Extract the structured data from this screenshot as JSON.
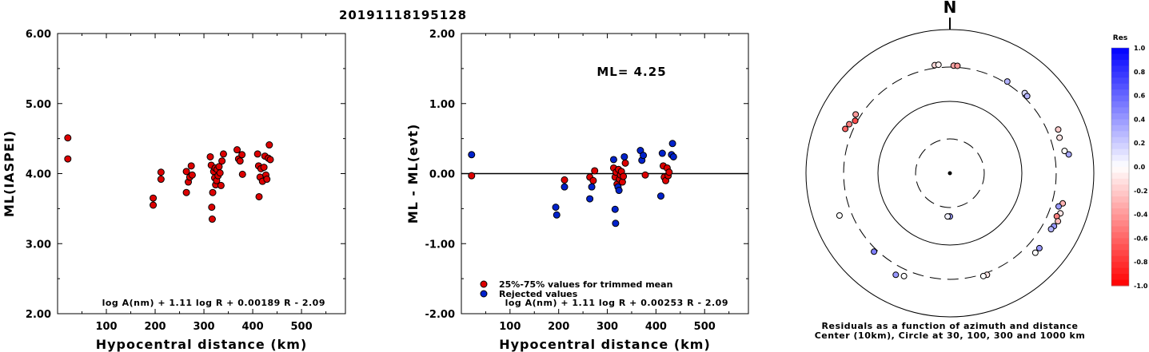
{
  "title": "20191118195128",
  "chart_data": [
    {
      "type": "scatter",
      "panel": "left",
      "ylabel": "ML(IASPEI)",
      "xlabel": "Hypocentral distance (km)",
      "xlim": [
        0,
        590
      ],
      "ylim": [
        2.0,
        6.0
      ],
      "xticks": [
        100,
        200,
        300,
        400,
        500
      ],
      "yticks": [
        "2.00",
        "3.00",
        "4.00",
        "5.00",
        "6.00"
      ],
      "formula": "log A(nm) + 1.11 log R + 0.00189 R - 2.09",
      "point_color": "#dd0000",
      "points": [
        {
          "x": 21,
          "y": 4.51
        },
        {
          "x": 21,
          "y": 4.21
        },
        {
          "x": 196,
          "y": 3.65
        },
        {
          "x": 196,
          "y": 3.55
        },
        {
          "x": 212,
          "y": 4.02
        },
        {
          "x": 212,
          "y": 3.92
        },
        {
          "x": 264,
          "y": 4.03
        },
        {
          "x": 264,
          "y": 3.73
        },
        {
          "x": 268,
          "y": 3.88
        },
        {
          "x": 271,
          "y": 3.95
        },
        {
          "x": 274,
          "y": 4.11
        },
        {
          "x": 276,
          "y": 3.98
        },
        {
          "x": 313,
          "y": 4.24
        },
        {
          "x": 315,
          "y": 4.12
        },
        {
          "x": 316,
          "y": 3.52
        },
        {
          "x": 317,
          "y": 3.35
        },
        {
          "x": 318,
          "y": 3.73
        },
        {
          "x": 320,
          "y": 4.03
        },
        {
          "x": 322,
          "y": 3.94
        },
        {
          "x": 323,
          "y": 4.08
        },
        {
          "x": 324,
          "y": 3.84
        },
        {
          "x": 326,
          "y": 3.9
        },
        {
          "x": 327,
          "y": 4.06
        },
        {
          "x": 329,
          "y": 3.97
        },
        {
          "x": 331,
          "y": 4.1
        },
        {
          "x": 333,
          "y": 4.01
        },
        {
          "x": 335,
          "y": 3.83
        },
        {
          "x": 337,
          "y": 4.18
        },
        {
          "x": 340,
          "y": 4.28
        },
        {
          "x": 368,
          "y": 4.34
        },
        {
          "x": 371,
          "y": 4.21
        },
        {
          "x": 374,
          "y": 4.18
        },
        {
          "x": 378,
          "y": 4.27
        },
        {
          "x": 379,
          "y": 3.99
        },
        {
          "x": 410,
          "y": 4.28
        },
        {
          "x": 412,
          "y": 4.11
        },
        {
          "x": 413,
          "y": 3.67
        },
        {
          "x": 415,
          "y": 3.95
        },
        {
          "x": 417,
          "y": 4.07
        },
        {
          "x": 420,
          "y": 3.89
        },
        {
          "x": 423,
          "y": 4.09
        },
        {
          "x": 425,
          "y": 4.25
        },
        {
          "x": 427,
          "y": 3.98
        },
        {
          "x": 429,
          "y": 3.92
        },
        {
          "x": 432,
          "y": 4.22
        },
        {
          "x": 434,
          "y": 4.41
        },
        {
          "x": 436,
          "y": 4.2
        }
      ]
    },
    {
      "type": "scatter",
      "panel": "middle",
      "ylabel": "ML - ML(evt)",
      "xlabel": "Hypocentral distance (km)",
      "xlim": [
        0,
        590
      ],
      "ylim": [
        -2.0,
        2.0
      ],
      "xticks": [
        100,
        200,
        300,
        400,
        500
      ],
      "yticks": [
        "-2.00",
        "-1.00",
        "0.00",
        "1.00",
        "2.00"
      ],
      "zero_line": 0.0,
      "ml_label": "ML= 4.25",
      "formula": "log A(nm) + 1.11 log R + 0.00253 R - 2.09",
      "legend": [
        {
          "label": "25%-75% values for trimmed mean",
          "color": "#dd0000"
        },
        {
          "label": "Rejected values",
          "color": "#0022cc"
        }
      ],
      "series": [
        {
          "name": "25%-75% values for trimmed mean",
          "color": "#dd0000",
          "points": [
            {
              "x": 21,
              "y": -0.03
            },
            {
              "x": 212,
              "y": -0.09
            },
            {
              "x": 264,
              "y": -0.05
            },
            {
              "x": 271,
              "y": -0.1
            },
            {
              "x": 274,
              "y": 0.04
            },
            {
              "x": 313,
              "y": 0.08
            },
            {
              "x": 316,
              "y": -0.05
            },
            {
              "x": 318,
              "y": 0.02
            },
            {
              "x": 320,
              "y": -0.15
            },
            {
              "x": 323,
              "y": 0.06
            },
            {
              "x": 325,
              "y": -0.08
            },
            {
              "x": 327,
              "y": -0.02
            },
            {
              "x": 329,
              "y": 0.03
            },
            {
              "x": 331,
              "y": -0.12
            },
            {
              "x": 333,
              "y": -0.04
            },
            {
              "x": 337,
              "y": 0.15
            },
            {
              "x": 378,
              "y": -0.02
            },
            {
              "x": 415,
              "y": 0.11
            },
            {
              "x": 417,
              "y": -0.05
            },
            {
              "x": 420,
              "y": -0.1
            },
            {
              "x": 423,
              "y": 0.08
            },
            {
              "x": 425,
              "y": -0.03
            },
            {
              "x": 427,
              "y": 0.02
            }
          ]
        },
        {
          "name": "Rejected values",
          "color": "#0022cc",
          "points": [
            {
              "x": 21,
              "y": 0.27
            },
            {
              "x": 194,
              "y": -0.48
            },
            {
              "x": 196,
              "y": -0.59
            },
            {
              "x": 212,
              "y": -0.19
            },
            {
              "x": 264,
              "y": -0.36
            },
            {
              "x": 268,
              "y": -0.19
            },
            {
              "x": 313,
              "y": 0.2
            },
            {
              "x": 316,
              "y": -0.51
            },
            {
              "x": 317,
              "y": -0.71
            },
            {
              "x": 322,
              "y": -0.19
            },
            {
              "x": 324,
              "y": -0.24
            },
            {
              "x": 335,
              "y": 0.24
            },
            {
              "x": 368,
              "y": 0.33
            },
            {
              "x": 371,
              "y": 0.19
            },
            {
              "x": 374,
              "y": 0.26
            },
            {
              "x": 410,
              "y": -0.32
            },
            {
              "x": 413,
              "y": 0.29
            },
            {
              "x": 432,
              "y": 0.27
            },
            {
              "x": 434,
              "y": 0.43
            },
            {
              "x": 436,
              "y": 0.24
            }
          ]
        }
      ]
    },
    {
      "type": "polar",
      "panel": "right",
      "north_label": "N",
      "caption_line1": "Residuals as a function of azimuth and distance",
      "caption_line2": "Center (10km), Circle at 30, 100, 300 and 1000 km",
      "rings_km": [
        30,
        100,
        300,
        1000
      ],
      "points": [
        {
          "azimuth": 352,
          "distance_km": 330,
          "residual": -0.15
        },
        {
          "azimuth": 354,
          "distance_km": 330,
          "residual": -0.05
        },
        {
          "azimuth": 2,
          "distance_km": 315,
          "residual": -0.35
        },
        {
          "azimuth": 4,
          "distance_km": 315,
          "residual": -0.4
        },
        {
          "azimuth": 32,
          "distance_km": 320,
          "residual": 0.3
        },
        {
          "azimuth": 43,
          "distance_km": 335,
          "residual": 0.15
        },
        {
          "azimuth": 45,
          "distance_km": 330,
          "residual": 0.3
        },
        {
          "azimuth": 68,
          "distance_km": 420,
          "residual": -0.2
        },
        {
          "azimuth": 72,
          "distance_km": 400,
          "residual": -0.1
        },
        {
          "azimuth": 79,
          "distance_km": 420,
          "residual": 0.0
        },
        {
          "azimuth": 81,
          "distance_km": 470,
          "residual": 0.35
        },
        {
          "azimuth": 105,
          "distance_km": 420,
          "residual": -0.3
        },
        {
          "azimuth": 107,
          "distance_km": 380,
          "residual": 0.4
        },
        {
          "azimuth": 110,
          "distance_km": 430,
          "residual": -0.1
        },
        {
          "azimuth": 112,
          "distance_km": 400,
          "residual": -0.5
        },
        {
          "azimuth": 114,
          "distance_km": 440,
          "residual": -0.25
        },
        {
          "azimuth": 117,
          "distance_km": 420,
          "residual": 0.4
        },
        {
          "azimuth": 119,
          "distance_km": 405,
          "residual": 0.3
        },
        {
          "azimuth": 130,
          "distance_km": 420,
          "residual": 0.4
        },
        {
          "azimuth": 133,
          "distance_km": 420,
          "residual": 0.0
        },
        {
          "azimuth": 160,
          "distance_km": 320,
          "residual": -0.1
        },
        {
          "azimuth": 162,
          "distance_km": 320,
          "residual": 0.0
        },
        {
          "azimuth": 180,
          "distance_km": 40,
          "residual": 0.4
        },
        {
          "azimuth": 183,
          "distance_km": 40,
          "residual": 0.05
        },
        {
          "azimuth": 204,
          "distance_km": 370,
          "residual": 0.0
        },
        {
          "azimuth": 208,
          "distance_km": 400,
          "residual": 0.4
        },
        {
          "azimuth": 224,
          "distance_km": 330,
          "residual": 0.5
        },
        {
          "azimuth": 249,
          "distance_km": 440,
          "residual": 0.0
        },
        {
          "azimuth": 293,
          "distance_km": 380,
          "residual": -0.6
        },
        {
          "azimuth": 296,
          "distance_km": 360,
          "residual": -0.5
        },
        {
          "azimuth": 299,
          "distance_km": 320,
          "residual": -0.7
        },
        {
          "azimuth": 302,
          "distance_km": 350,
          "residual": -0.4
        }
      ],
      "colorbar": {
        "title": "Res",
        "ticks": [
          "1.0",
          "0.8",
          "0.6",
          "0.4",
          "0.2",
          "0.0",
          "-0.2",
          "-0.4",
          "-0.6",
          "-0.8",
          "-1.0"
        ],
        "min": -1.0,
        "max": 1.0,
        "negative_color": "#ff0000",
        "positive_color": "#0000ff",
        "neutral_color": "#ffffff"
      }
    }
  ]
}
